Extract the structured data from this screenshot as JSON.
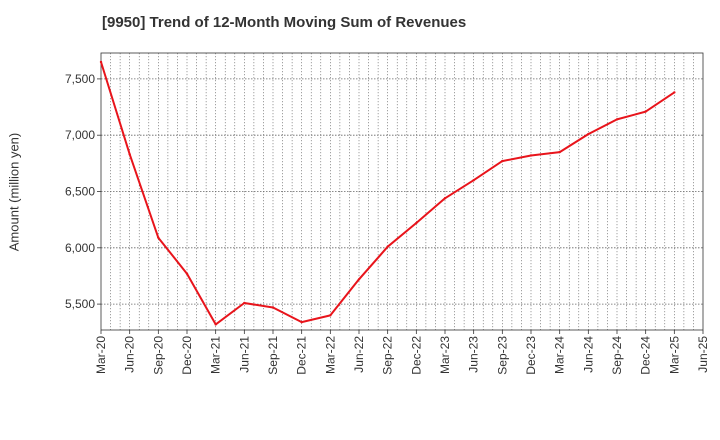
{
  "chart_data": {
    "type": "line",
    "title": "[9950]  Trend of 12-Month Moving Sum of Revenues",
    "xlabel": "",
    "ylabel": "Amount (million yen)",
    "x_ticks": [
      "Mar-20",
      "Jun-20",
      "Sep-20",
      "Dec-20",
      "Mar-21",
      "Jun-21",
      "Sep-21",
      "Dec-21",
      "Mar-22",
      "Jun-22",
      "Sep-22",
      "Dec-22",
      "Mar-23",
      "Jun-23",
      "Sep-23",
      "Dec-23",
      "Mar-24",
      "Jun-24",
      "Sep-24",
      "Dec-24",
      "Mar-25",
      "Jun-25"
    ],
    "y_ticks": [
      5500,
      6000,
      6500,
      7000,
      7500
    ],
    "y_tick_labels": [
      "5,500",
      "6,000",
      "6,500",
      "7,000",
      "7,500"
    ],
    "ylim": [
      5270,
      7730
    ],
    "grid": true,
    "colors": {
      "line": "#e8141b",
      "grid": "#666666",
      "axis": "#333333"
    },
    "series": [
      {
        "x": [
          "Mar-20",
          "Jun-20",
          "Sep-20",
          "Dec-20",
          "Mar-21",
          "Jun-21",
          "Sep-21",
          "Dec-21",
          "Mar-22",
          "Jun-22",
          "Sep-22",
          "Dec-22",
          "Mar-23",
          "Jun-23",
          "Sep-23",
          "Dec-23",
          "Mar-24",
          "Jun-24",
          "Sep-24",
          "Dec-24",
          "Mar-25"
        ],
        "values": [
          7650,
          6830,
          6090,
          5770,
          5320,
          5510,
          5470,
          5340,
          5400,
          5720,
          6010,
          6220,
          6440,
          6600,
          6770,
          6820,
          6850,
          7010,
          7140,
          7210,
          7380
        ]
      }
    ]
  }
}
